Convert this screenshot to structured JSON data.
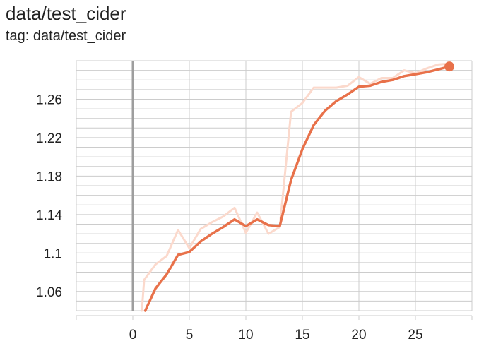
{
  "title": "data/test_cider",
  "subtitle": "tag: data/test_cider",
  "colors": {
    "smoothed": "#e8714a",
    "raw": "#fbd9cc",
    "grid": "#cccccc",
    "zero_axis": "#9e9e9e"
  },
  "chart_data": {
    "type": "line",
    "title": "data/test_cider",
    "subtitle": "tag: data/test_cider",
    "xlabel": "",
    "ylabel": "",
    "xlim": [
      -5,
      30
    ],
    "ylim": [
      1.04,
      1.3
    ],
    "grid": true,
    "x_ticks": [
      0,
      5,
      10,
      15,
      20,
      25
    ],
    "y_ticks": [
      1.06,
      1.1,
      1.14,
      1.18,
      1.22,
      1.26
    ],
    "y_tick_labels": [
      "1.06",
      "1.1",
      "1.14",
      "1.18",
      "1.22",
      "1.26"
    ],
    "series": [
      {
        "role": "raw",
        "x": [
          0.8,
          1,
          2,
          3,
          4,
          5,
          6,
          7,
          8,
          9,
          10,
          11,
          12,
          13,
          14,
          15,
          16,
          17,
          18,
          19,
          20,
          21,
          22,
          23,
          24,
          25,
          26,
          27,
          28
        ],
        "values": [
          1.04,
          1.072,
          1.088,
          1.097,
          1.124,
          1.105,
          1.125,
          1.132,
          1.138,
          1.147,
          1.121,
          1.142,
          1.12,
          1.127,
          1.247,
          1.256,
          1.272,
          1.272,
          1.272,
          1.274,
          1.283,
          1.276,
          1.282,
          1.282,
          1.29,
          1.287,
          1.292,
          1.296,
          1.297
        ]
      },
      {
        "role": "smoothed",
        "x": [
          1.1,
          2,
          3,
          4,
          5,
          6,
          7,
          8,
          9,
          10,
          11,
          12,
          13,
          14,
          15,
          16,
          17,
          18,
          19,
          20,
          21,
          22,
          23,
          24,
          25,
          26,
          27,
          28
        ],
        "values": [
          1.04,
          1.063,
          1.078,
          1.098,
          1.101,
          1.112,
          1.12,
          1.127,
          1.135,
          1.128,
          1.135,
          1.129,
          1.128,
          1.176,
          1.208,
          1.233,
          1.248,
          1.258,
          1.265,
          1.273,
          1.274,
          1.278,
          1.28,
          1.284,
          1.286,
          1.288,
          1.291,
          1.294
        ]
      }
    ]
  }
}
